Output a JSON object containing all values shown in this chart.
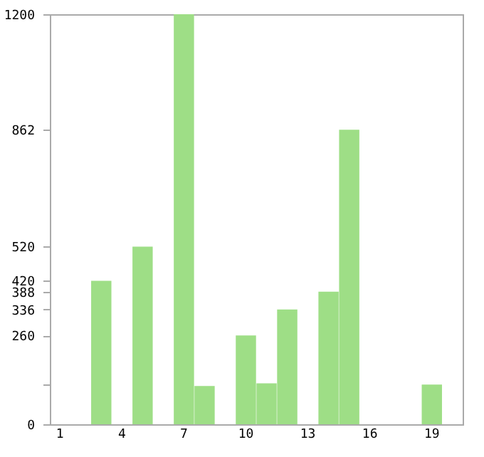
{
  "chart_data": {
    "type": "bar",
    "categories": [
      "1",
      null,
      null,
      "4",
      null,
      null,
      "7",
      null,
      null,
      "10",
      null,
      null,
      "13",
      null,
      null,
      "16",
      null,
      null,
      "19",
      null
    ],
    "values": [
      0,
      0,
      420,
      0,
      520,
      0,
      1200,
      112,
      0,
      260,
      120,
      336,
      0,
      388,
      862,
      0,
      0,
      0,
      116,
      0
    ],
    "color": "#9ede86",
    "ylim": [
      0,
      1200
    ],
    "yticks": [
      0,
      {
        "value": 116,
        "label": null
      },
      260,
      336,
      388,
      420,
      520,
      862,
      1200
    ],
    "grid": false
  }
}
